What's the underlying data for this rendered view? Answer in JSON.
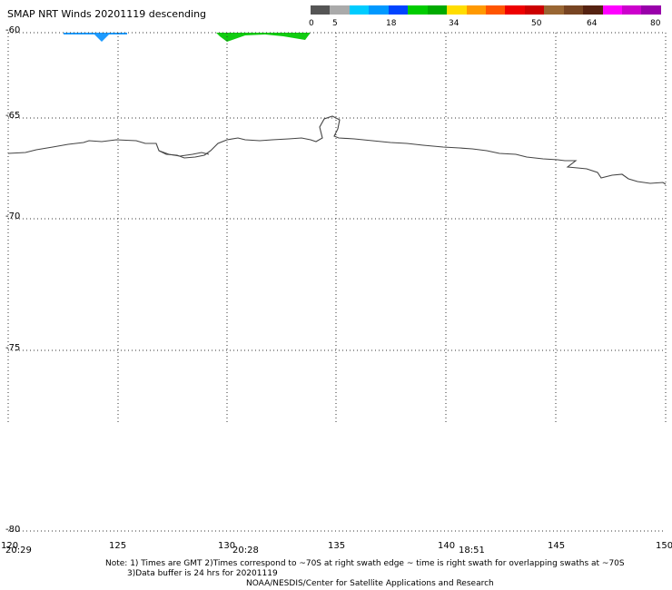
{
  "title": "SMAP NRT Winds  20201119 descending",
  "colorbar": {
    "colors": [
      "#555555",
      "#aaaaaa",
      "#00ccff",
      "#0099ff",
      "#0044ff",
      "#00cc00",
      "#00aa00",
      "#ffdd00",
      "#ff9900",
      "#ff5500",
      "#ee0000",
      "#cc0000",
      "#996633",
      "#774422",
      "#552211",
      "#ff00ff",
      "#cc00cc",
      "#9900aa"
    ],
    "ticks": [
      "0",
      "5",
      "18",
      "34",
      "50",
      "64",
      "80"
    ]
  },
  "axes": {
    "lat_labels": [
      "-60",
      "-65",
      "-70",
      "-75",
      "-80"
    ],
    "lon_labels": [
      "120",
      "125",
      "130",
      "135",
      "140",
      "145",
      "150"
    ]
  },
  "time_labels": [
    "20:29",
    "20:28",
    "18:51"
  ],
  "notes": {
    "line1": "Note: 1) Times are GMT 2)Times correspond to ~70S at right swath edge ~ time is right swath for overlapping swaths at ~70S",
    "line2": "3)Data buffer is 24 hrs for 20201119",
    "line3": "NOAA/NESDIS/Center for Satellite Applications and Research"
  },
  "map_colors": {
    "swath_blue": "#1e9bff",
    "swath_green": "#11cc11",
    "coast": "#444444",
    "grid": "#333333"
  }
}
